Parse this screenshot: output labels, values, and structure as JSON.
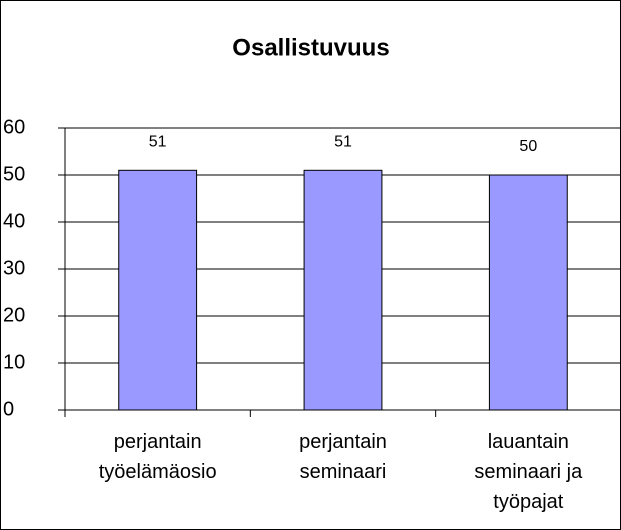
{
  "chart_data": {
    "type": "bar",
    "title": "Osallistuvuus",
    "categories": [
      "perjantain työelämäosio",
      "perjantain seminaari",
      "lauantain seminaari ja työpajat"
    ],
    "values": [
      51,
      51,
      50
    ],
    "color": "#9999ff",
    "ylim": [
      0,
      60
    ],
    "yticks": [
      0,
      10,
      20,
      30,
      40,
      50,
      60
    ],
    "grid": true
  }
}
